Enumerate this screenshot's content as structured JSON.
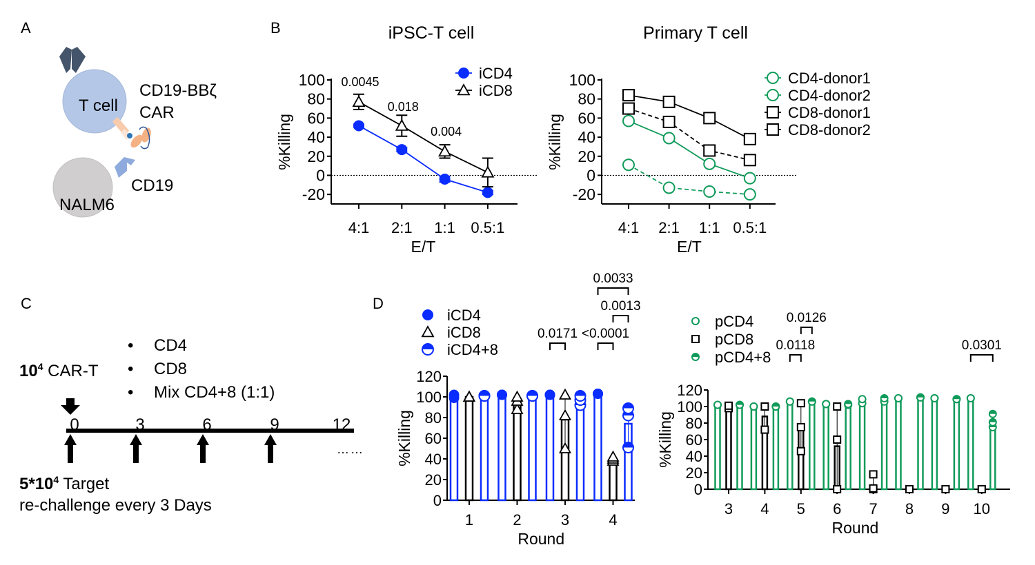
{
  "panels": {
    "A": {
      "letter": "A",
      "t_cell_label": "T cell",
      "car_label_line1": "CD19-BBζ",
      "car_label_line2": "CAR",
      "target_label": "NALM6",
      "antigen_label": "CD19",
      "colors": {
        "t_cell": "#b4c7e7",
        "nalm6": "#d0cece",
        "tcr": "#44546a",
        "cd19": "#8faadc",
        "scfv": "#f4b183"
      }
    },
    "B": {
      "letter": "B"
    },
    "C": {
      "letter": "C",
      "car_t_prefix": "10",
      "car_t_exp": "4",
      "car_t_suffix": " CAR-T",
      "bullets": [
        "CD4",
        "CD8",
        "Mix CD4+8 (1:1)"
      ],
      "timeline_ticks": [
        "0",
        "3",
        "6",
        "9",
        "12"
      ],
      "target_prefix": "5*10",
      "target_exp": "4",
      "target_suffix": " Target",
      "rechallenge": "re-challenge every 3 Days",
      "ellipsis": "……"
    },
    "D": {
      "letter": "D"
    }
  },
  "chart_data": [
    {
      "id": "ipsc",
      "type": "line",
      "title": "iPSC-T cell",
      "xlabel": "E/T",
      "ylabel": "%Killing",
      "categories": [
        "4:1",
        "2:1",
        "1:1",
        "0.5:1"
      ],
      "ylim": [
        -30,
        100
      ],
      "yticks": [
        -20,
        0,
        20,
        40,
        60,
        80,
        100
      ],
      "zero_line": "dotted",
      "legend": "top-right",
      "series": [
        {
          "name": "iCD4",
          "marker": "filled-circle",
          "color": "#0a2cff",
          "dash": false,
          "values": [
            52,
            27,
            -4,
            -18
          ],
          "errors": [
            1.5,
            2,
            3,
            2
          ]
        },
        {
          "name": "iCD8",
          "marker": "open-triangle",
          "color": "#000000",
          "dash": false,
          "values": [
            77,
            52,
            25,
            3
          ],
          "errors": [
            8,
            11,
            7,
            15
          ]
        }
      ],
      "annotations": [
        {
          "text": "0.0045",
          "category": "4:1",
          "y": 98
        },
        {
          "text": "0.018",
          "category": "2:1",
          "y": 72
        },
        {
          "text": "0.004",
          "category": "1:1",
          "y": 46
        }
      ]
    },
    {
      "id": "primary",
      "type": "line",
      "title": "Primary T cell",
      "xlabel": "E/T",
      "ylabel": "%Killing",
      "categories": [
        "4:1",
        "2:1",
        "1:1",
        "0.5:1"
      ],
      "ylim": [
        -30,
        100
      ],
      "yticks": [
        -20,
        0,
        20,
        40,
        60,
        80,
        100
      ],
      "zero_line": "dotted",
      "legend": "right",
      "series": [
        {
          "name": "CD4-donor1",
          "marker": "open-circle",
          "color": "#109b5a",
          "dash": true,
          "values": [
            11,
            -13,
            -17,
            -20
          ]
        },
        {
          "name": "CD4-donor2",
          "marker": "open-circle",
          "color": "#109b5a",
          "dash": false,
          "values": [
            57,
            39,
            12,
            -3
          ]
        },
        {
          "name": "CD8-donor1",
          "marker": "open-square",
          "color": "#000000",
          "dash": true,
          "values": [
            70,
            56,
            26,
            16
          ]
        },
        {
          "name": "CD8-donor2",
          "marker": "open-square",
          "color": "#000000",
          "dash": false,
          "values": [
            84,
            77,
            60,
            38
          ]
        }
      ]
    },
    {
      "id": "ipsc-rechallenge",
      "type": "bar",
      "xlabel": "Round",
      "ylabel": "%Killing",
      "categories": [
        "1",
        "2",
        "3",
        "4"
      ],
      "ylim": [
        0,
        120
      ],
      "yticks": [
        0,
        20,
        40,
        60,
        80,
        100,
        120
      ],
      "legend": "top-left",
      "series": [
        {
          "name": "iCD4",
          "marker": "filled-circle",
          "color": "#0a2cff",
          "means": [
            101,
            102,
            102,
            103
          ],
          "points": [
            [
              99,
              101,
              102
            ],
            [
              102,
              102,
              102
            ],
            [
              102,
              102,
              102
            ],
            [
              103,
              103,
              103
            ]
          ]
        },
        {
          "name": "iCD8",
          "marker": "open-triangle",
          "color": "#000000",
          "means": [
            100,
            95,
            78,
            39
          ],
          "points": [
            [
              100,
              100,
              100
            ],
            [
              88,
              96,
              100
            ],
            [
              50,
              82,
              102
            ],
            [
              38,
              40,
              42
            ]
          ]
        },
        {
          "name": "iCD4+8",
          "marker": "half-circle",
          "color": "#0a2cff",
          "means": [
            101,
            101,
            97,
            74
          ],
          "points": [
            [
              101,
              101,
              101
            ],
            [
              101,
              101,
              101
            ],
            [
              92,
              97,
              101
            ],
            [
              51,
              82,
              89
            ]
          ]
        }
      ],
      "significance": [
        {
          "text": "0.0171",
          "round": "3",
          "from": "iCD4",
          "to": "iCD8",
          "level": 0
        },
        {
          "text": "<0.0001",
          "round": "4",
          "from": "iCD4",
          "to": "iCD8",
          "level": 0
        },
        {
          "text": "0.0013",
          "round": "4",
          "from": "iCD8",
          "to": "iCD4+8",
          "level": 1
        },
        {
          "text": "0.0033",
          "round": "4",
          "from": "iCD4",
          "to": "iCD4+8",
          "level": 2
        }
      ]
    },
    {
      "id": "primary-rechallenge",
      "type": "bar",
      "xlabel": "Round",
      "ylabel": "%Killing",
      "categories": [
        "3",
        "4",
        "5",
        "6",
        "7",
        "8",
        "9",
        "10"
      ],
      "ylim": [
        0,
        120
      ],
      "yticks": [
        0,
        20,
        40,
        60,
        80,
        100,
        120
      ],
      "legend": "top-left",
      "series": [
        {
          "name": "pCD4",
          "marker": "open-circle-small",
          "color": "#109b5a",
          "means": [
            102,
            100,
            106,
            103,
            107,
            110,
            110,
            110
          ],
          "points": [
            [
              102,
              102
            ],
            [
              100,
              100
            ],
            [
              106,
              106
            ],
            [
              103,
              103
            ],
            [
              104,
              109
            ],
            [
              110,
              110
            ],
            [
              110,
              110
            ],
            [
              110,
              110
            ]
          ]
        },
        {
          "name": "pCD8",
          "marker": "open-square-small",
          "color": "#000000",
          "means": [
            100,
            88,
            75,
            52,
            2,
            0,
            0,
            0
          ],
          "points": [
            [
              98,
              101
            ],
            [
              72,
              100
            ],
            [
              46,
              75,
              104
            ],
            [
              0,
              60,
              100
            ],
            [
              0,
              1,
              18
            ],
            [
              0,
              0
            ],
            [
              0,
              0
            ],
            [
              0,
              0
            ]
          ]
        },
        {
          "name": "pCD4+8",
          "marker": "half-circle-small",
          "color": "#109b5a",
          "means": [
            102,
            100,
            106,
            102,
            108,
            111,
            109,
            82
          ],
          "points": [
            [
              102,
              102
            ],
            [
              100,
              100
            ],
            [
              106,
              106
            ],
            [
              102,
              103
            ],
            [
              106,
              110
            ],
            [
              111,
              111
            ],
            [
              109,
              109
            ],
            [
              75,
              81,
              91
            ]
          ]
        }
      ],
      "significance": [
        {
          "text": "0.0118",
          "round": "5",
          "from": "pCD4",
          "to": "pCD8",
          "level": 0
        },
        {
          "text": "0.0126",
          "round": "5",
          "from": "pCD8",
          "to": "pCD4+8",
          "level": 1
        },
        {
          "text": "0.0301",
          "round": "10",
          "from": "pCD4",
          "to": "pCD4+8",
          "level": 0
        }
      ]
    }
  ]
}
